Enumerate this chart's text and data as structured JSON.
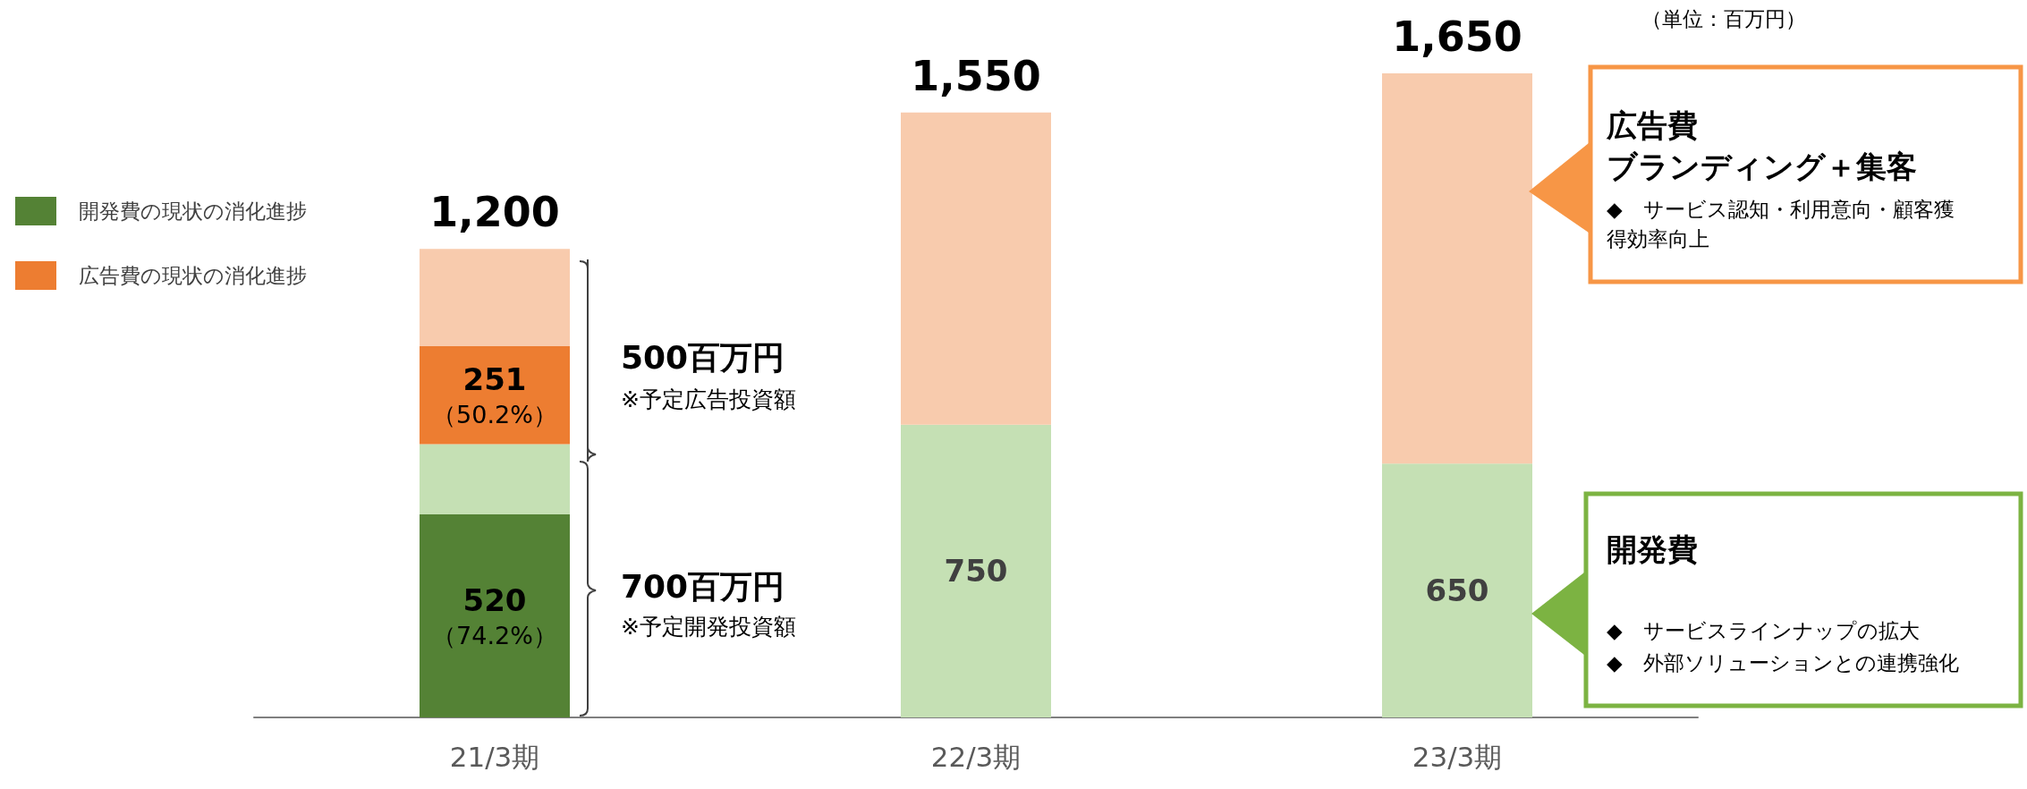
{
  "chart_data": {
    "type": "bar",
    "stacked": true,
    "categories": [
      "21/3期",
      "22/3期",
      "23/3期"
    ],
    "series": [
      {
        "name": "開発費の現状の消化進捗",
        "color": "#548235",
        "values": [
          520,
          null,
          null
        ],
        "value_labels": [
          "520\n（74.2%）",
          null,
          null
        ]
      },
      {
        "color": "#c5e0b4",
        "values": [
          180,
          750,
          650
        ],
        "value_labels": [
          null,
          "750",
          "650"
        ]
      },
      {
        "name": "広告費の現状の消化進捗",
        "color": "#ed7d31",
        "values": [
          251,
          null,
          null
        ],
        "value_labels": [
          "251\n（50.2%）",
          null,
          null
        ]
      },
      {
        "color": "#f8cbad",
        "values": [
          249,
          800,
          1000
        ]
      }
    ],
    "totals": [
      "1,200",
      "1,550",
      "1,650"
    ],
    "ylim": [
      0,
      1650
    ],
    "tick_labels": "x",
    "grid": false,
    "legend": "left",
    "annotations": [
      "（単位：百万円）",
      "500百万円",
      "※予定広告投資額",
      "700百万円",
      "※予定開発投資額",
      "広告費",
      "ブランディング＋集客",
      "◆　サービス認知・利用意向・顧客獲得効率向上",
      "開発費",
      "◆　サービスラインナップの拡大",
      "◆　外部ソリューションとの連携強化"
    ]
  }
}
